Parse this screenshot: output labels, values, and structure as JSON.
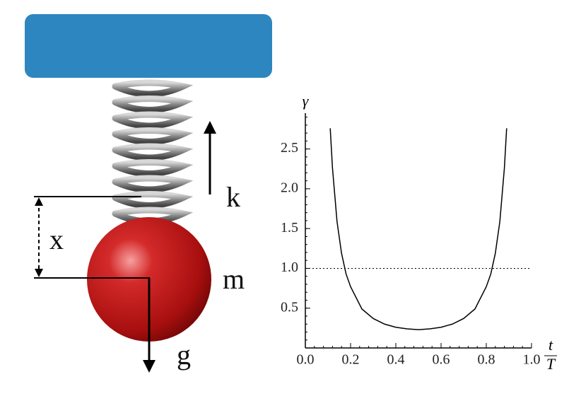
{
  "diagram": {
    "labels": {
      "spring_constant": "k",
      "displacement": "x",
      "mass": "m",
      "gravity": "g"
    }
  },
  "chart_data": {
    "type": "line",
    "ylabel": "γ",
    "xlabel": "t",
    "xlabel_denominator": "T",
    "x": [
      0.11,
      0.12,
      0.14,
      0.16,
      0.18,
      0.2,
      0.25,
      0.3,
      0.35,
      0.4,
      0.45,
      0.5,
      0.55,
      0.6,
      0.65,
      0.7,
      0.75,
      0.8,
      0.82,
      0.84,
      0.86,
      0.88,
      0.89
    ],
    "series": [
      {
        "color": "#000000",
        "values": [
          2.76,
          2.26,
          1.59,
          1.19,
          0.93,
          0.77,
          0.49,
          0.37,
          0.3,
          0.26,
          0.24,
          0.23,
          0.24,
          0.26,
          0.3,
          0.37,
          0.49,
          0.77,
          0.93,
          1.19,
          1.59,
          2.26,
          2.76
        ]
      }
    ],
    "reference_line": {
      "value": 1,
      "style": "dotted"
    },
    "xlim": [
      0,
      1
    ],
    "ylim": [
      0,
      2.95
    ],
    "xticks": [
      {
        "value": 0,
        "label": "0.0"
      },
      0.2,
      0.4,
      0.6,
      0.8,
      {
        "value": 1,
        "label": "1.0"
      }
    ],
    "yticks": [
      0.5,
      {
        "value": 1,
        "label": "1.0"
      },
      1.5,
      {
        "value": 2,
        "label": "2.0"
      },
      2.5
    ]
  }
}
